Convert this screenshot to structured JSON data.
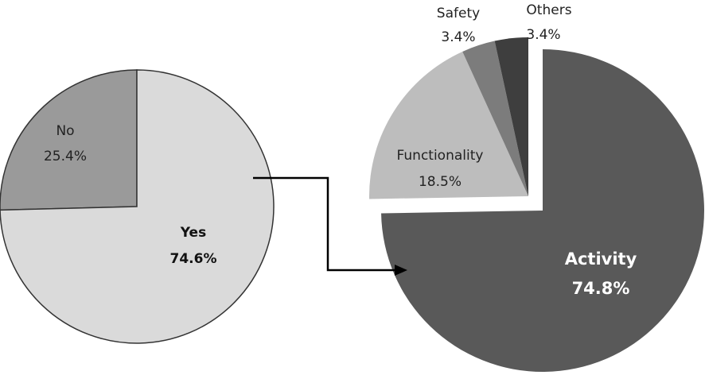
{
  "chart_data": [
    {
      "type": "pie",
      "slices": [
        {
          "label": "No",
          "value": 25.4,
          "value_label": "25.4%",
          "color": "#9a9a9a"
        },
        {
          "label": "Yes",
          "value": 74.6,
          "value_label": "74.6%",
          "color": "#dadada"
        }
      ],
      "legend": "none"
    },
    {
      "type": "pie",
      "slices": [
        {
          "label": "Activity",
          "value": 74.8,
          "value_label": "74.8%",
          "color": "#595959",
          "exploded": true
        },
        {
          "label": "Functionality",
          "value": 18.5,
          "value_label": "18.5%",
          "color": "#bdbdbd"
        },
        {
          "label": "Safety",
          "value": 3.4,
          "value_label": "3.4%",
          "color": "#7c7c7c"
        },
        {
          "label": "Others",
          "value": 3.4,
          "value_label": "3.4%",
          "color": "#3e3e3e"
        }
      ],
      "legend": "none"
    }
  ],
  "connector": {
    "from": "Yes",
    "to": "second-pie",
    "color": "#000000"
  }
}
